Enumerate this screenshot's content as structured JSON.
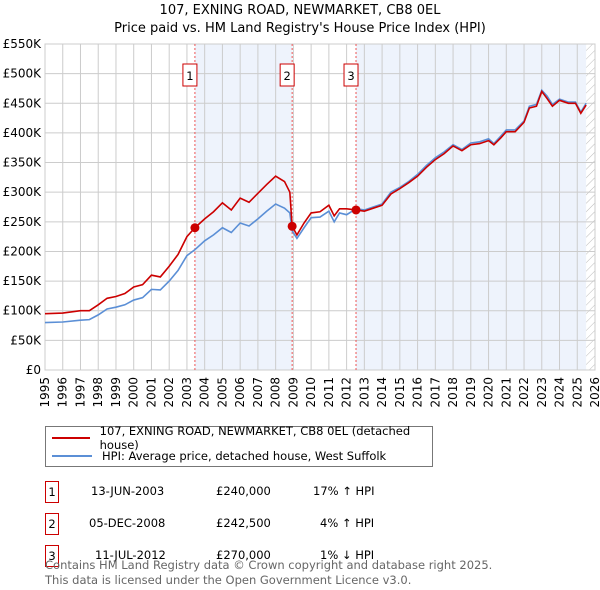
{
  "title": "107, EXNING ROAD, NEWMARKET, CB8 0EL",
  "subtitle": "Price paid vs. HM Land Registry's House Price Index (HPI)",
  "chart_data": {
    "type": "line",
    "xlim": [
      1995,
      2026
    ],
    "ylim": [
      0,
      550000
    ],
    "yticks": [
      0,
      50000,
      100000,
      150000,
      200000,
      250000,
      300000,
      350000,
      400000,
      450000,
      500000,
      550000
    ],
    "ytick_labels": [
      "£0",
      "£50K",
      "£100K",
      "£150K",
      "£200K",
      "£250K",
      "£300K",
      "£350K",
      "£400K",
      "£450K",
      "£500K",
      "£550K"
    ],
    "xticks": [
      1995,
      1996,
      1997,
      1998,
      1999,
      2000,
      2001,
      2002,
      2003,
      2004,
      2005,
      2006,
      2007,
      2008,
      2009,
      2010,
      2011,
      2012,
      2013,
      2014,
      2015,
      2016,
      2017,
      2018,
      2019,
      2020,
      2021,
      2022,
      2023,
      2024,
      2025,
      2026
    ],
    "xtick_labels": [
      "1995",
      "1996",
      "1997",
      "1998",
      "1999",
      "2000",
      "2001",
      "2002",
      "2003",
      "2004",
      "2005",
      "2006",
      "2007",
      "2008",
      "2009",
      "2010",
      "2011",
      "2012",
      "2013",
      "2014",
      "2015",
      "2016",
      "2017",
      "2018",
      "2019",
      "2020",
      "2021",
      "2022",
      "2023",
      "2024",
      "2025",
      "2026"
    ],
    "grid": true,
    "shaded_ranges": [
      [
        2003.45,
        2008.93
      ],
      [
        2012.53,
        2025.5
      ]
    ],
    "hatched_from": 2025.5,
    "series": [
      {
        "name": "107, EXNING ROAD, NEWMARKET, CB8 0EL (detached house)",
        "color": "#cc0000",
        "x": [
          1995,
          1996,
          1997,
          1997.5,
          1998,
          1998.5,
          1999,
          1999.5,
          2000,
          2000.5,
          2001,
          2001.5,
          2002,
          2002.5,
          2003,
          2003.45,
          2004,
          2004.5,
          2005,
          2005.5,
          2006,
          2006.5,
          2007,
          2007.5,
          2008,
          2008.5,
          2008.8,
          2008.93,
          2009.2,
          2009.6,
          2010,
          2010.5,
          2011,
          2011.3,
          2011.6,
          2012,
          2012.53,
          2013,
          2013.5,
          2014,
          2014.5,
          2015,
          2015.5,
          2016,
          2016.5,
          2017,
          2017.5,
          2018,
          2018.5,
          2019,
          2019.5,
          2020,
          2020.3,
          2020.7,
          2021,
          2021.5,
          2022,
          2022.3,
          2022.7,
          2023,
          2023.3,
          2023.6,
          2024,
          2024.5,
          2024.9,
          2025.2,
          2025.5
        ],
        "y": [
          95000,
          96000,
          100000,
          100000,
          110000,
          121000,
          124000,
          129000,
          140000,
          144000,
          160000,
          157000,
          175000,
          195000,
          225000,
          240000,
          255000,
          267000,
          282000,
          270000,
          290000,
          283000,
          298000,
          313000,
          327000,
          318000,
          300000,
          242500,
          228000,
          248000,
          265000,
          267000,
          278000,
          260000,
          272000,
          272000,
          270000,
          268000,
          273000,
          278000,
          297000,
          306000,
          316000,
          327000,
          342000,
          355000,
          365000,
          378000,
          370000,
          380000,
          382000,
          387000,
          380000,
          392000,
          402000,
          402000,
          418000,
          442000,
          445000,
          470000,
          458000,
          445000,
          455000,
          450000,
          450000,
          433000,
          447000
        ]
      },
      {
        "name": "HPI: Average price, detached house, West Suffolk",
        "color": "#5b8fd6",
        "x": [
          1995,
          1996,
          1997,
          1997.5,
          1998,
          1998.5,
          1999,
          1999.5,
          2000,
          2000.5,
          2001,
          2001.5,
          2002,
          2002.5,
          2003,
          2003.45,
          2004,
          2004.5,
          2005,
          2005.5,
          2006,
          2006.5,
          2007,
          2007.5,
          2008,
          2008.5,
          2008.8,
          2008.93,
          2009.2,
          2009.6,
          2010,
          2010.5,
          2011,
          2011.3,
          2011.6,
          2012,
          2012.53,
          2013,
          2013.5,
          2014,
          2014.5,
          2015,
          2015.5,
          2016,
          2016.5,
          2017,
          2017.5,
          2018,
          2018.5,
          2019,
          2019.5,
          2020,
          2020.3,
          2020.7,
          2021,
          2021.5,
          2022,
          2022.3,
          2022.7,
          2023,
          2023.3,
          2023.6,
          2024,
          2024.5,
          2024.9,
          2025.2,
          2025.5
        ],
        "y": [
          80000,
          81000,
          84000,
          85000,
          93000,
          103000,
          106000,
          110000,
          118000,
          122000,
          136000,
          135000,
          150000,
          168000,
          193000,
          203000,
          218000,
          228000,
          240000,
          232000,
          248000,
          243000,
          255000,
          268000,
          280000,
          273000,
          265000,
          235000,
          222000,
          240000,
          257000,
          258000,
          268000,
          250000,
          265000,
          262000,
          272000,
          270000,
          275000,
          280000,
          300000,
          308000,
          318000,
          330000,
          345000,
          358000,
          368000,
          380000,
          372000,
          383000,
          385000,
          390000,
          382000,
          395000,
          405000,
          405000,
          420000,
          445000,
          448000,
          472000,
          462000,
          448000,
          457000,
          452000,
          452000,
          435000,
          450000
        ]
      }
    ],
    "sales": [
      {
        "label": "1",
        "x": 2003.45,
        "y": 240000,
        "date": "13-JUN-2003",
        "price": "£240,000",
        "hpi": "17% ↑ HPI"
      },
      {
        "label": "2",
        "x": 2008.93,
        "y": 242500,
        "date": "05-DEC-2008",
        "price": "£242,500",
        "hpi": "4% ↑ HPI"
      },
      {
        "label": "3",
        "x": 2012.53,
        "y": 270000,
        "date": "11-JUL-2012",
        "price": "£270,000",
        "hpi": "1% ↓ HPI"
      }
    ]
  },
  "footer": {
    "line1": "Contains HM Land Registry data © Crown copyright and database right 2025.",
    "line2": "This data is licensed under the Open Government Licence v3.0."
  }
}
